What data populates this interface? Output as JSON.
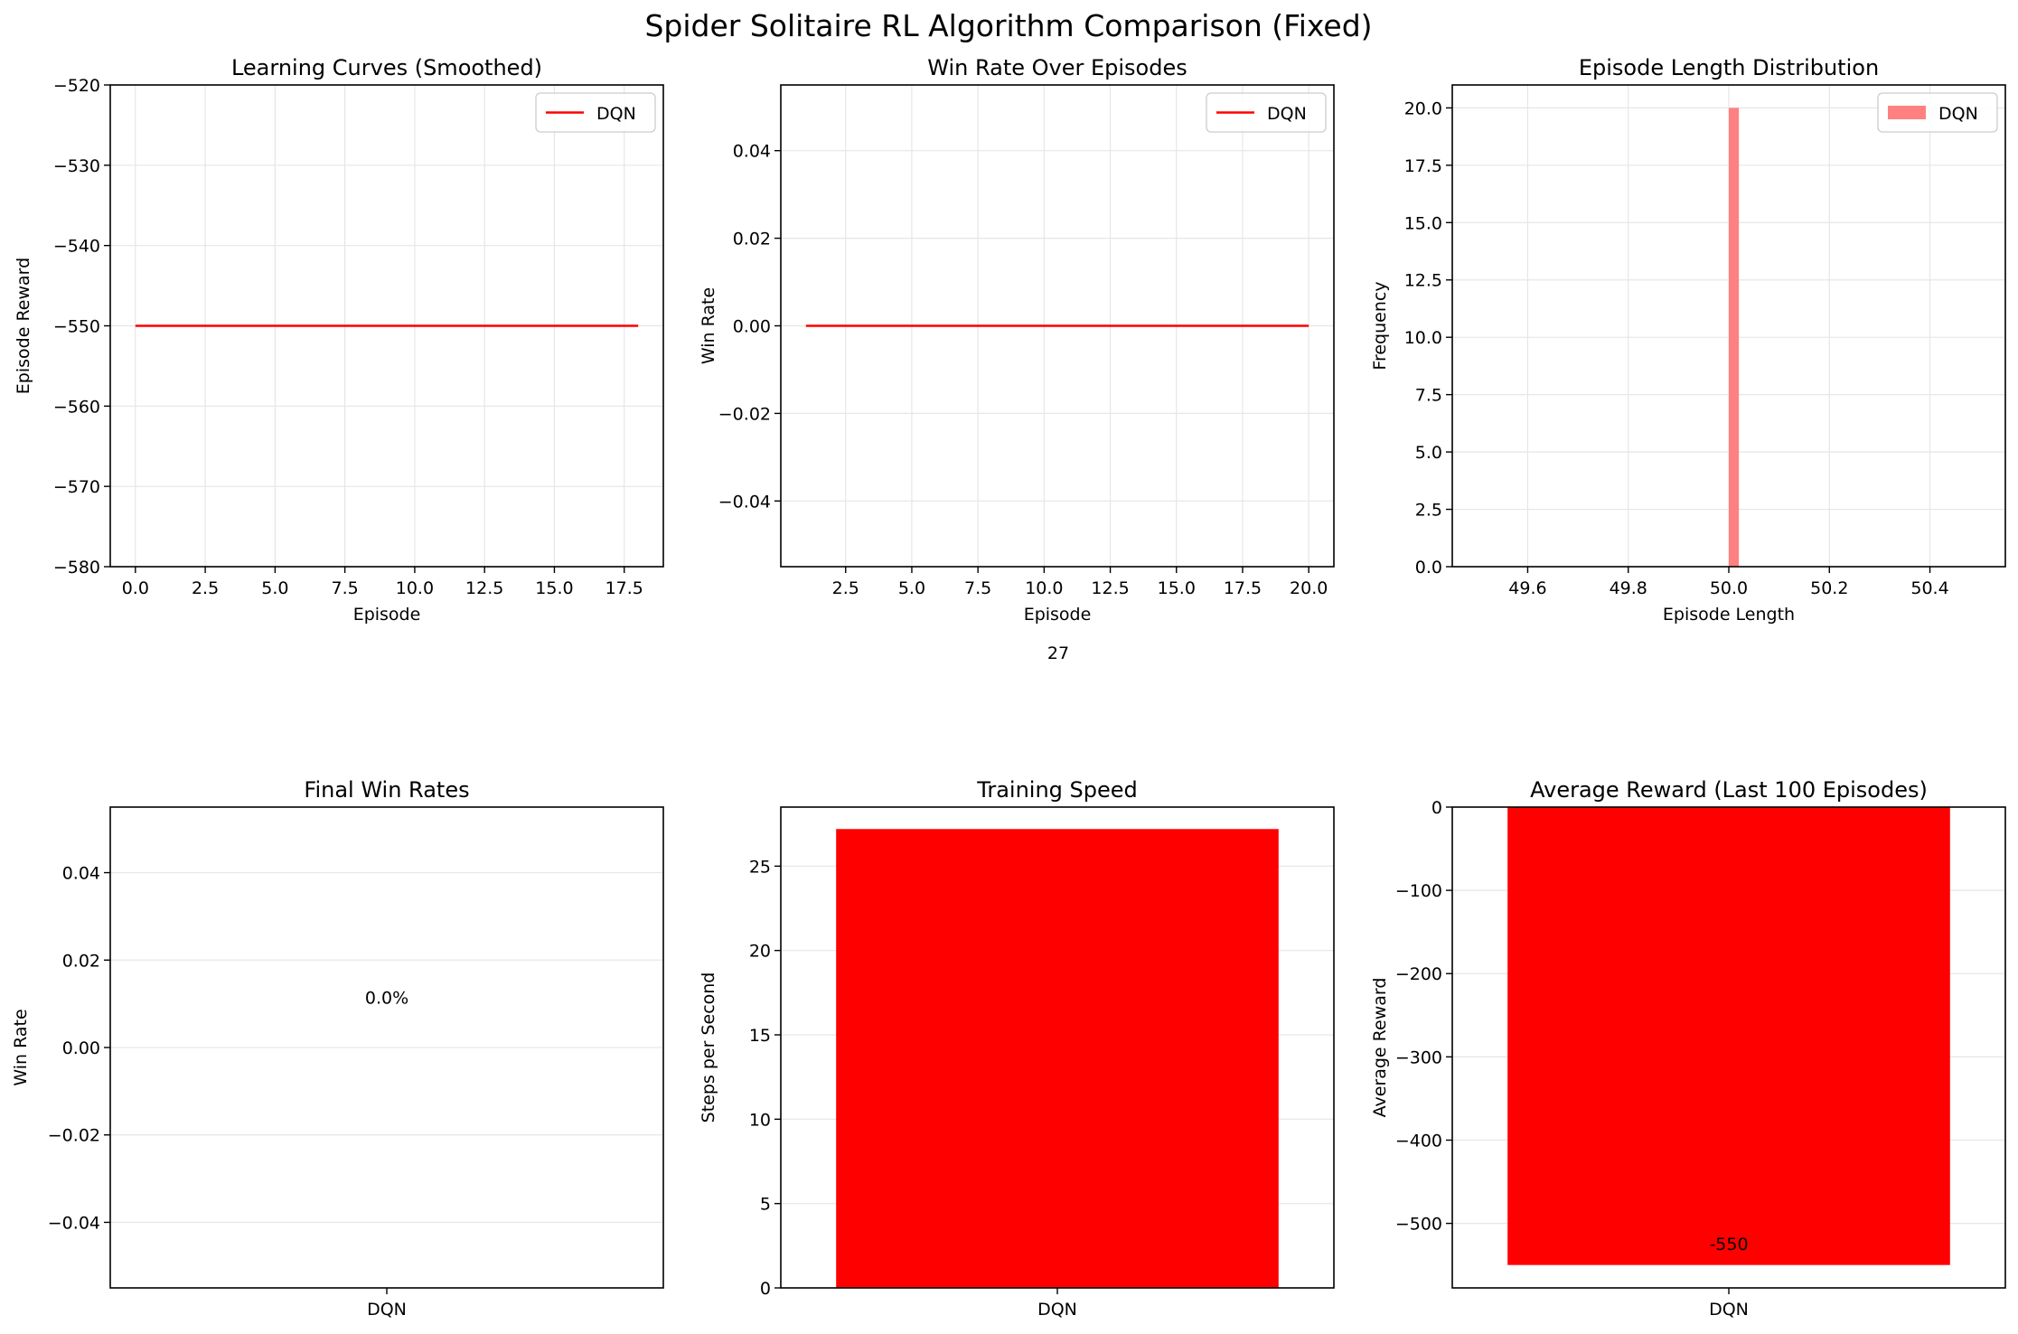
{
  "figure": {
    "title": "Spider Solitaire RL Algorithm Comparison (Fixed)",
    "stray_text": "27"
  },
  "colors": {
    "series_red": "#ff0000",
    "hist_fill": "#ff8080",
    "grid": "#e6e6e6",
    "axes": "#000000"
  },
  "chart_data": [
    {
      "id": "learning-curves",
      "type": "line",
      "title": "Learning Curves (Smoothed)",
      "xlabel": "Episode",
      "ylabel": "Episode Reward",
      "xlim": [
        -0.9,
        18.9
      ],
      "ylim": [
        -580,
        -520
      ],
      "xticks": [
        0.0,
        2.5,
        5.0,
        7.5,
        10.0,
        12.5,
        15.0,
        17.5
      ],
      "xtick_labels": [
        "0.0",
        "2.5",
        "5.0",
        "7.5",
        "10.0",
        "12.5",
        "15.0",
        "17.5"
      ],
      "yticks": [
        -580,
        -570,
        -560,
        -550,
        -540,
        -530,
        -520
      ],
      "ytick_labels": [
        "−580",
        "−570",
        "−560",
        "−550",
        "−540",
        "−530",
        "−520"
      ],
      "grid": true,
      "legend": "upper right",
      "series": [
        {
          "name": "DQN",
          "color": "#ff0000",
          "x": [
            0,
            18
          ],
          "y": [
            -550,
            -550
          ]
        }
      ]
    },
    {
      "id": "win-rate-episodes",
      "type": "line",
      "title": "Win Rate Over Episodes",
      "xlabel": "Episode",
      "ylabel": "Win Rate",
      "xlim": [
        0.05,
        20.95
      ],
      "ylim": [
        -0.055,
        0.055
      ],
      "xticks": [
        2.5,
        5.0,
        7.5,
        10.0,
        12.5,
        15.0,
        17.5,
        20.0
      ],
      "xtick_labels": [
        "2.5",
        "5.0",
        "7.5",
        "10.0",
        "12.5",
        "15.0",
        "17.5",
        "20.0"
      ],
      "yticks": [
        -0.04,
        -0.02,
        0.0,
        0.02,
        0.04
      ],
      "ytick_labels": [
        "−0.04",
        "−0.02",
        "0.00",
        "0.02",
        "0.04"
      ],
      "grid": true,
      "legend": "upper right",
      "series": [
        {
          "name": "DQN",
          "color": "#ff0000",
          "x": [
            1,
            20
          ],
          "y": [
            0,
            0
          ]
        }
      ]
    },
    {
      "id": "episode-length",
      "type": "bar",
      "subtype": "histogram",
      "title": "Episode Length Distribution",
      "xlabel": "Episode Length",
      "ylabel": "Frequency",
      "xlim": [
        49.45,
        50.55
      ],
      "ylim": [
        0,
        21
      ],
      "xticks": [
        49.6,
        49.8,
        50.0,
        50.2,
        50.4
      ],
      "xtick_labels": [
        "49.6",
        "49.8",
        "50.0",
        "50.2",
        "50.4"
      ],
      "yticks": [
        0,
        2.5,
        5,
        7.5,
        10,
        12.5,
        15,
        17.5,
        20
      ],
      "ytick_labels": [
        "0.0",
        "2.5",
        "5.0",
        "7.5",
        "10.0",
        "12.5",
        "15.0",
        "17.5",
        "20.0"
      ],
      "grid": true,
      "legend": "upper right",
      "series": [
        {
          "name": "DQN",
          "color": "#ff8080",
          "bins": [
            [
              50.0,
              50.02
            ]
          ],
          "counts": [
            20
          ]
        }
      ]
    },
    {
      "id": "final-win-rates",
      "type": "bar",
      "title": "Final Win Rates",
      "xlabel": "",
      "ylabel": "Win Rate",
      "categories": [
        "DQN"
      ],
      "values": [
        0.0
      ],
      "value_labels": [
        "0.0%"
      ],
      "value_label_y": 0.01,
      "ylim": [
        -0.055,
        0.055
      ],
      "yticks": [
        -0.04,
        -0.02,
        0.0,
        0.02,
        0.04
      ],
      "ytick_labels": [
        "−0.04",
        "−0.02",
        "0.00",
        "0.02",
        "0.04"
      ],
      "grid": true,
      "color": "#ff0000"
    },
    {
      "id": "training-speed",
      "type": "bar",
      "title": "Training Speed",
      "xlabel": "",
      "ylabel": "Steps per Second",
      "categories": [
        "DQN"
      ],
      "values": [
        27.2
      ],
      "ylim": [
        0,
        28.5
      ],
      "yticks": [
        0,
        5,
        10,
        15,
        20,
        25
      ],
      "ytick_labels": [
        "0",
        "5",
        "10",
        "15",
        "20",
        "25"
      ],
      "grid": true,
      "color": "#ff0000"
    },
    {
      "id": "average-reward",
      "type": "bar",
      "title": "Average Reward (Last 100 Episodes)",
      "xlabel": "",
      "ylabel": "Average Reward",
      "categories": [
        "DQN"
      ],
      "values": [
        -550
      ],
      "value_labels": [
        "-550"
      ],
      "value_label_y": -532,
      "ylim": [
        -577.5,
        0
      ],
      "yticks": [
        -500,
        -400,
        -300,
        -200,
        -100,
        0
      ],
      "ytick_labels": [
        "−500",
        "−400",
        "−300",
        "−200",
        "−100",
        "0"
      ],
      "grid": true,
      "color": "#ff0000"
    }
  ]
}
